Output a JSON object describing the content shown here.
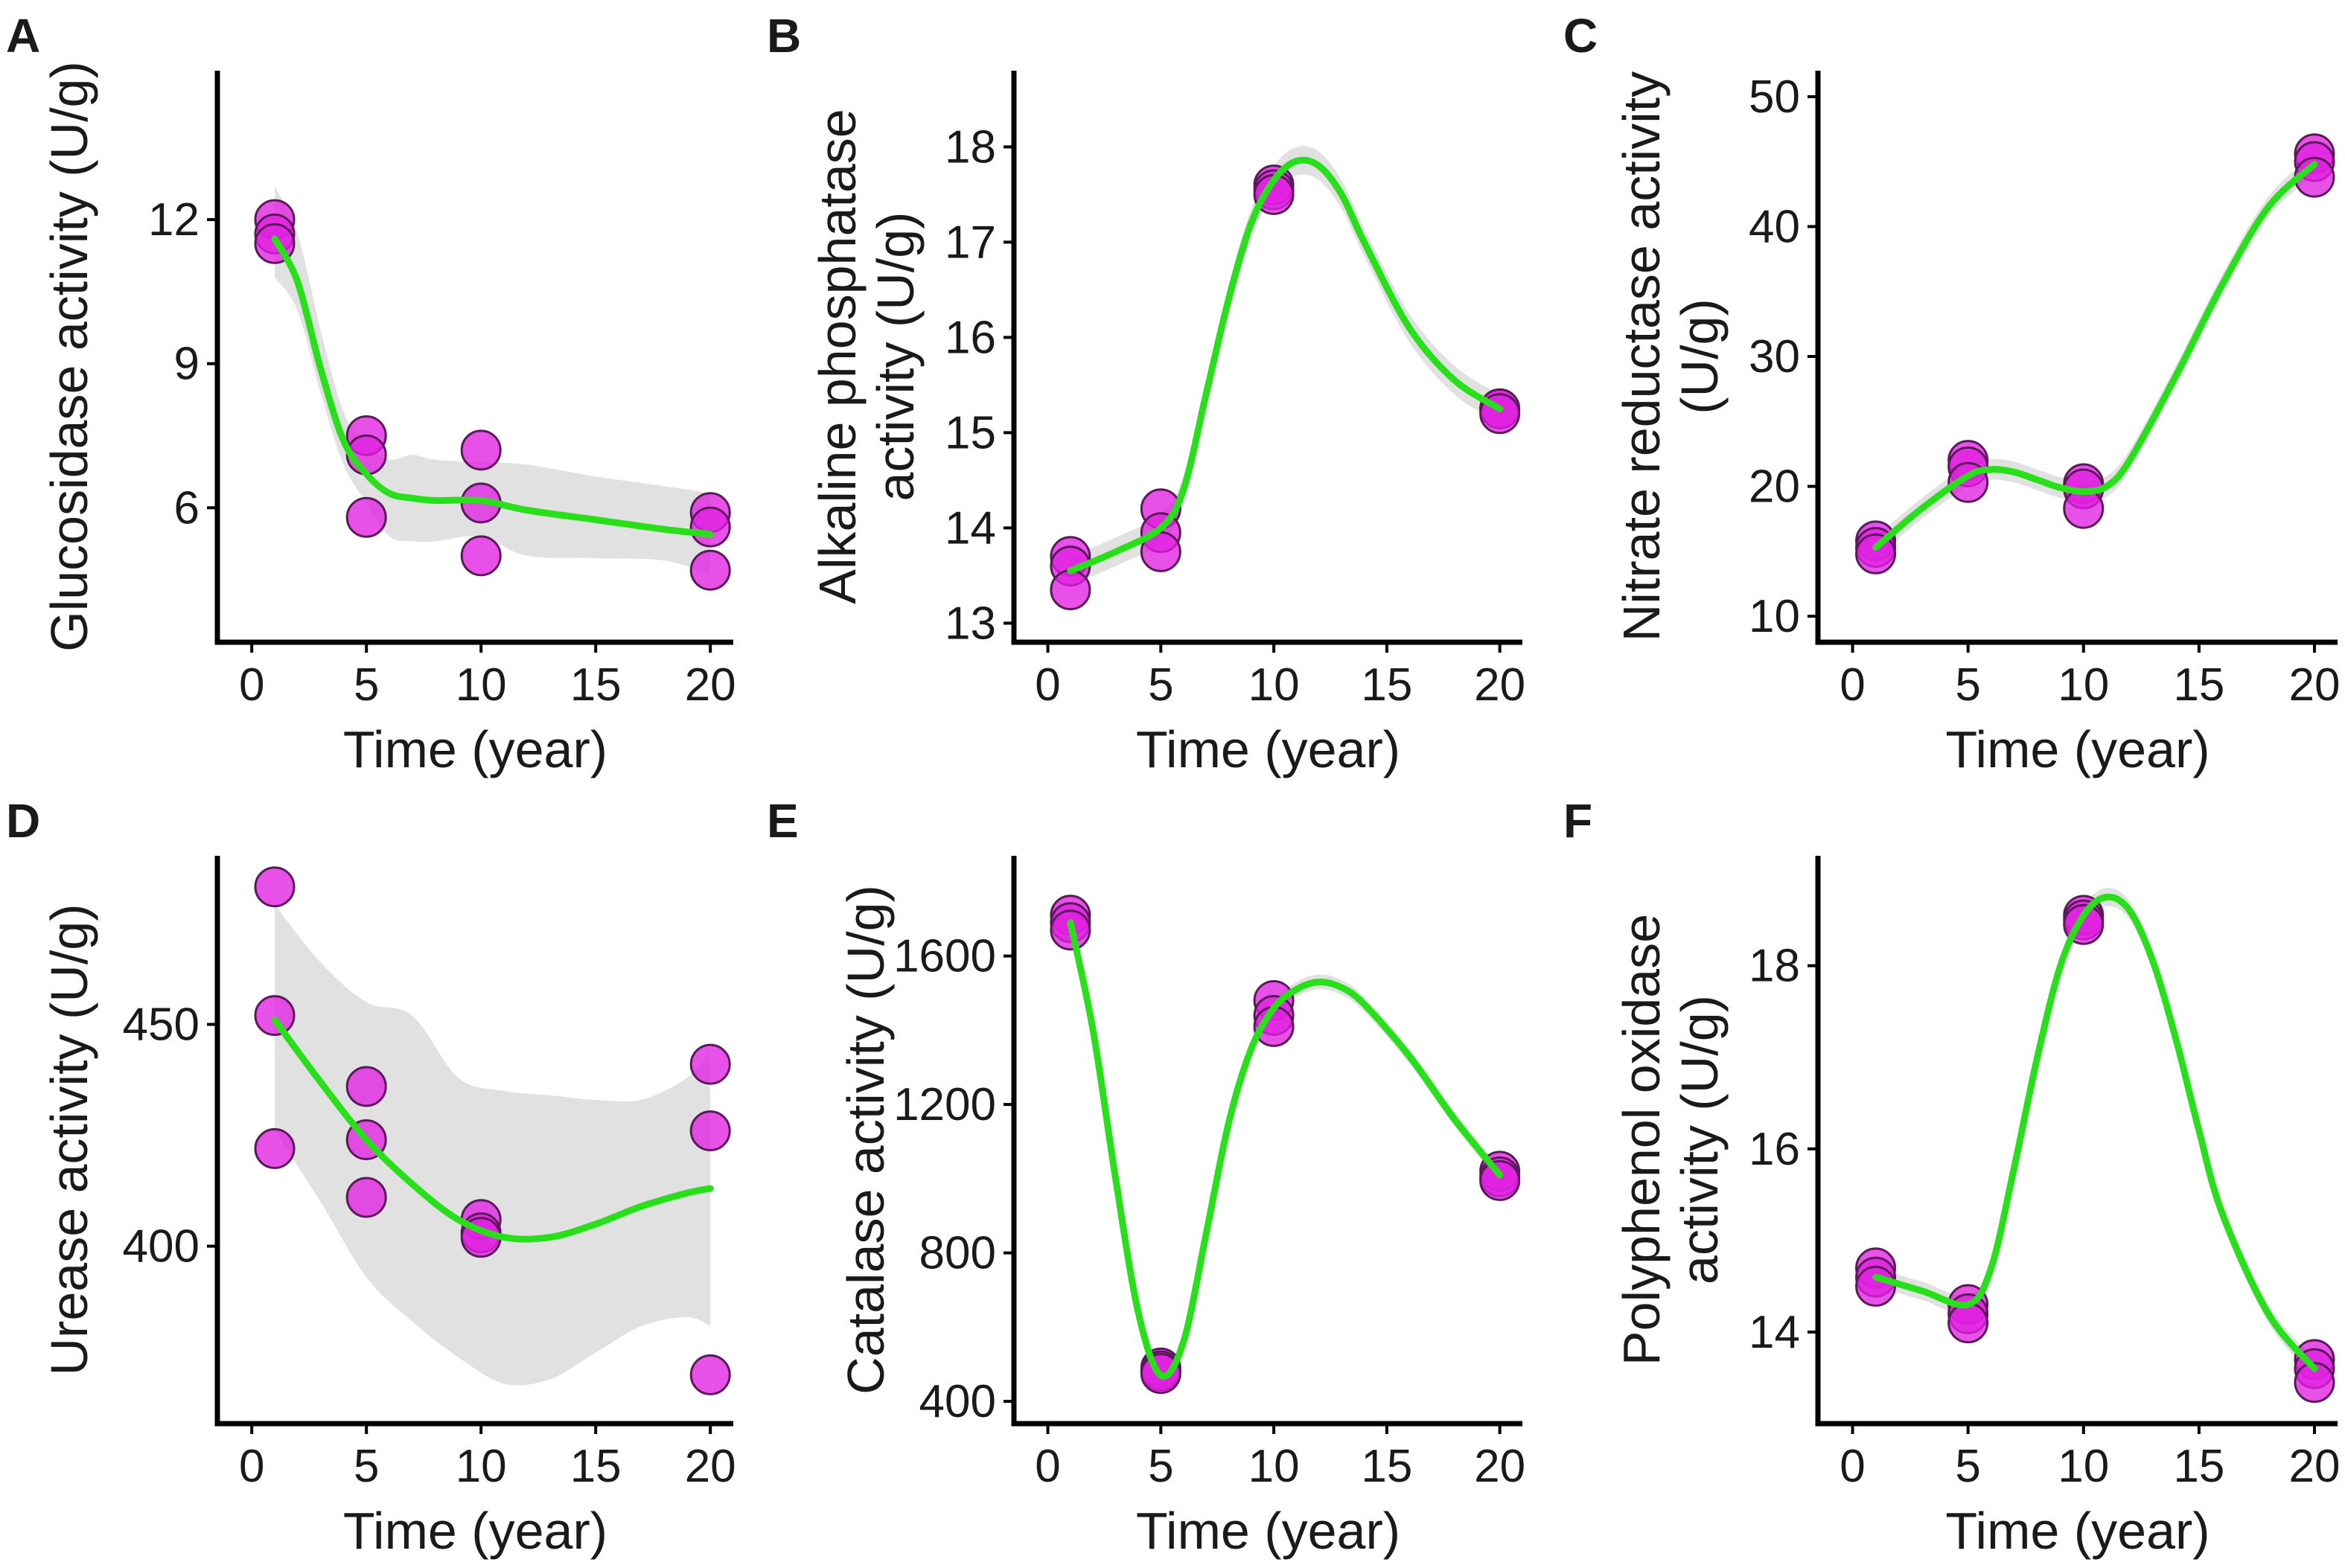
{
  "colors": {
    "points": "#e020e0",
    "trend": "#27e01a",
    "band": "#bdbdbd"
  },
  "chart_data": [
    {
      "panel": "A",
      "type": "scatter",
      "title": "",
      "xlabel": "Time (year)",
      "ylabel": [
        "Glucosidase activity (U/g)"
      ],
      "xlim": [
        -1.5,
        21
      ],
      "ylim": [
        3.2,
        15.1
      ],
      "xticks": [
        0,
        5,
        10,
        15,
        20
      ],
      "yticks": [
        6,
        9,
        12
      ],
      "x": [
        1,
        1,
        1,
        5,
        5,
        5,
        10,
        10,
        10,
        20,
        20,
        20
      ],
      "y": [
        12.0,
        11.7,
        11.5,
        7.5,
        7.1,
        5.8,
        7.2,
        6.1,
        5.0,
        5.9,
        5.6,
        4.7
      ],
      "trend": {
        "x": [
          1,
          2,
          3,
          4,
          5,
          6,
          7,
          8,
          10,
          12,
          15,
          18,
          20
        ],
        "y": [
          11.6,
          10.7,
          8.9,
          7.4,
          6.7,
          6.3,
          6.2,
          6.15,
          6.15,
          5.95,
          5.75,
          5.55,
          5.45
        ]
      },
      "band_lower": [
        10.8,
        10.1,
        8.4,
        6.9,
        6.1,
        5.4,
        5.3,
        5.3,
        5.4,
        5.0,
        4.95,
        4.9,
        4.6
      ],
      "band_upper": [
        12.7,
        11.7,
        9.7,
        8.0,
        7.3,
        7.0,
        7.1,
        7.0,
        6.95,
        6.9,
        6.65,
        6.45,
        6.3
      ]
    },
    {
      "panel": "B",
      "type": "scatter",
      "title": "",
      "xlabel": "Time (year)",
      "ylabel": [
        "Alkaline phosphatase",
        "activity (U/g)"
      ],
      "xlim": [
        -1.5,
        21
      ],
      "ylim": [
        12.8,
        18.8
      ],
      "xticks": [
        0,
        5,
        10,
        15,
        20
      ],
      "yticks": [
        13,
        14,
        15,
        16,
        17,
        18
      ],
      "x": [
        1,
        1,
        1,
        5,
        5,
        5,
        10,
        10,
        10,
        20,
        20,
        20
      ],
      "y": [
        13.7,
        13.6,
        13.35,
        14.2,
        13.95,
        13.75,
        17.6,
        17.55,
        17.5,
        15.25,
        15.25,
        15.2
      ],
      "trend": {
        "x": [
          1,
          3,
          5,
          6,
          7,
          8,
          9,
          10,
          11,
          12,
          13,
          14,
          16,
          18,
          20
        ],
        "y": [
          13.55,
          13.75,
          14.0,
          14.4,
          15.4,
          16.4,
          17.2,
          17.65,
          17.85,
          17.8,
          17.5,
          17.0,
          16.1,
          15.55,
          15.25
        ]
      },
      "band_lower": [
        13.4,
        13.6,
        13.85,
        14.25,
        15.25,
        16.25,
        17.05,
        17.5,
        17.7,
        17.65,
        17.35,
        16.85,
        15.95,
        15.4,
        15.1
      ],
      "band_upper": [
        13.7,
        13.9,
        14.15,
        14.55,
        15.55,
        16.55,
        17.35,
        17.8,
        18.0,
        17.95,
        17.65,
        17.15,
        16.25,
        15.7,
        15.4
      ]
    },
    {
      "panel": "C",
      "type": "scatter",
      "title": "",
      "xlabel": "Time (year)",
      "ylabel": [
        "Nitrate reductase activity",
        "(U/g)"
      ],
      "xlim": [
        -1.5,
        21
      ],
      "ylim": [
        8,
        52
      ],
      "xticks": [
        0,
        5,
        10,
        15,
        20
      ],
      "yticks": [
        10,
        20,
        30,
        40,
        50
      ],
      "x": [
        1,
        1,
        1,
        5,
        5,
        5,
        10,
        10,
        10,
        20,
        20,
        20
      ],
      "y": [
        15.8,
        15.3,
        14.8,
        22.0,
        21.5,
        20.3,
        20.2,
        19.8,
        18.3,
        45.6,
        45.0,
        43.8
      ],
      "trend": {
        "x": [
          1,
          3,
          5,
          6,
          7,
          8,
          9,
          10,
          11,
          12,
          14,
          16,
          18,
          20
        ],
        "y": [
          15.3,
          18.3,
          20.8,
          21.3,
          21.1,
          20.5,
          19.9,
          19.6,
          20.0,
          22.0,
          28.5,
          35.5,
          41.5,
          44.8
        ]
      },
      "band_lower": [
        14.5,
        17.5,
        20.0,
        20.5,
        20.3,
        19.7,
        19.1,
        18.8,
        19.2,
        21.2,
        27.7,
        34.7,
        40.7,
        44.0
      ],
      "band_upper": [
        16.1,
        19.1,
        21.6,
        22.1,
        21.9,
        21.3,
        20.7,
        20.4,
        20.8,
        22.8,
        29.3,
        36.3,
        42.3,
        45.6
      ]
    },
    {
      "panel": "D",
      "type": "scatter",
      "title": "",
      "xlabel": "Time (year)",
      "ylabel": [
        "Urease activity (U/g)"
      ],
      "xlim": [
        -1.5,
        21
      ],
      "ylim": [
        360,
        488
      ],
      "xticks": [
        0,
        5,
        10,
        15,
        20
      ],
      "yticks": [
        400,
        450
      ],
      "x": [
        1,
        1,
        1,
        5,
        5,
        5,
        10,
        10,
        10,
        20,
        20,
        20
      ],
      "y": [
        481,
        452,
        422,
        436,
        424,
        411,
        406,
        403,
        402,
        441,
        426,
        371
      ],
      "trend": {
        "x": [
          1,
          3,
          5,
          7,
          9,
          11,
          13,
          15,
          17,
          19,
          20
        ],
        "y": [
          451,
          437,
          424,
          414,
          406,
          402,
          402,
          405,
          409,
          412,
          413
        ]
      },
      "band_lower": [
        426,
        410,
        393,
        383,
        375,
        369,
        370,
        376,
        382,
        384,
        382
      ],
      "band_upper": [
        477,
        464,
        455,
        452,
        438,
        435,
        434,
        433,
        433,
        438,
        444
      ]
    },
    {
      "panel": "E",
      "type": "scatter",
      "title": "",
      "xlabel": "Time (year)",
      "ylabel": [
        "Catalase activity (U/g)"
      ],
      "xlim": [
        -1.5,
        21
      ],
      "ylim": [
        340,
        1870
      ],
      "xticks": [
        0,
        5,
        10,
        15,
        20
      ],
      "yticks": [
        400,
        800,
        1200,
        1600
      ],
      "x": [
        1,
        1,
        1,
        5,
        5,
        5,
        10,
        10,
        10,
        20,
        20,
        20
      ],
      "y": [
        1710,
        1690,
        1670,
        490,
        482,
        475,
        1480,
        1440,
        1410,
        1020,
        1005,
        995
      ],
      "trend": {
        "x": [
          1,
          2,
          3,
          4,
          5,
          6,
          7,
          8,
          9,
          10,
          11,
          12,
          13,
          14,
          16,
          18,
          20
        ],
        "y": [
          1690,
          1400,
          1000,
          640,
          470,
          560,
          850,
          1150,
          1350,
          1460,
          1510,
          1530,
          1515,
          1470,
          1330,
          1160,
          1010
        ]
      },
      "band_lower": [
        1670,
        1380,
        980,
        620,
        450,
        540,
        830,
        1130,
        1330,
        1440,
        1490,
        1510,
        1495,
        1450,
        1310,
        1140,
        990
      ],
      "band_upper": [
        1710,
        1420,
        1020,
        660,
        490,
        580,
        870,
        1170,
        1370,
        1480,
        1530,
        1550,
        1535,
        1490,
        1350,
        1180,
        1030
      ]
    },
    {
      "panel": "F",
      "type": "scatter",
      "title": "",
      "xlabel": "Time (year)",
      "ylabel": [
        "Polyphenol oxidase",
        "activity (U/g)"
      ],
      "xlim": [
        -1.5,
        21
      ],
      "ylim": [
        13.0,
        19.2
      ],
      "xticks": [
        0,
        5,
        10,
        15,
        20
      ],
      "yticks": [
        14,
        16,
        18
      ],
      "x": [
        1,
        1,
        1,
        5,
        5,
        5,
        10,
        10,
        10,
        20,
        20,
        20
      ],
      "y": [
        14.7,
        14.6,
        14.5,
        14.3,
        14.2,
        14.1,
        18.55,
        18.5,
        18.45,
        13.7,
        13.6,
        13.45
      ],
      "trend": {
        "x": [
          1,
          3,
          5,
          6,
          7,
          8,
          9,
          10,
          11,
          12,
          13,
          14,
          15,
          16,
          18,
          20
        ],
        "y": [
          14.6,
          14.45,
          14.3,
          14.7,
          15.8,
          17.0,
          18.0,
          18.55,
          18.75,
          18.6,
          18.05,
          17.2,
          16.2,
          15.3,
          14.2,
          13.6
        ]
      },
      "band_lower": [
        14.5,
        14.35,
        14.2,
        14.6,
        15.7,
        16.9,
        17.9,
        18.45,
        18.65,
        18.5,
        17.95,
        17.1,
        16.1,
        15.2,
        14.1,
        13.5
      ],
      "band_upper": [
        14.7,
        14.55,
        14.4,
        14.8,
        15.9,
        17.1,
        18.1,
        18.65,
        18.85,
        18.7,
        18.15,
        17.3,
        16.3,
        15.4,
        14.3,
        13.7
      ]
    }
  ]
}
